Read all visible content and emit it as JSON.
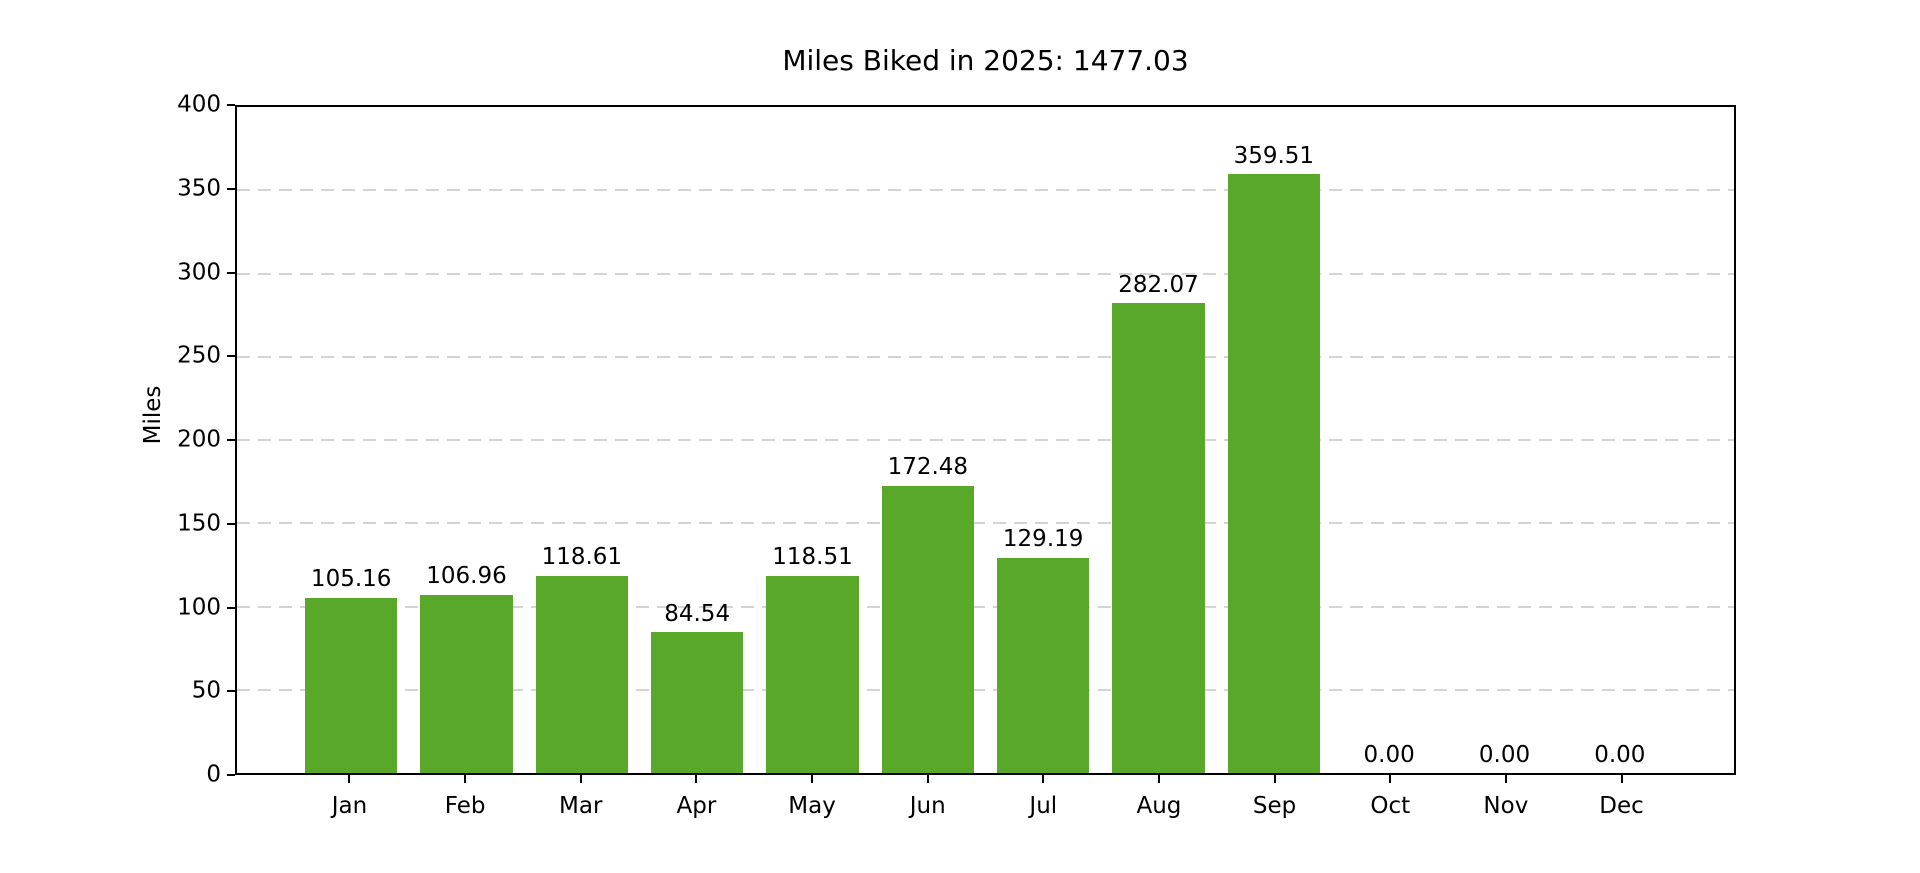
{
  "chart_data": {
    "type": "bar",
    "title": "Miles Biked in 2025: 1477.03",
    "total_label": "1477.03",
    "xlabel": "",
    "ylabel": "Miles",
    "categories": [
      "Jan",
      "Feb",
      "Mar",
      "Apr",
      "May",
      "Jun",
      "Jul",
      "Aug",
      "Sep",
      "Oct",
      "Nov",
      "Dec"
    ],
    "values": [
      105.16,
      106.96,
      118.61,
      84.54,
      118.51,
      172.48,
      129.19,
      282.07,
      359.51,
      0.0,
      0.0,
      0.0
    ],
    "value_label_decimals": 2,
    "ylim": [
      0,
      400
    ],
    "yticks": [
      0,
      50,
      100,
      150,
      200,
      250,
      300,
      350,
      400
    ],
    "grid": "horizontal-dashed",
    "legend": "none",
    "colors": {
      "bar": "#5aa82a",
      "grid": "#d4d4d4",
      "spine": "#000000",
      "text": "#000000",
      "background": "#ffffff"
    }
  }
}
